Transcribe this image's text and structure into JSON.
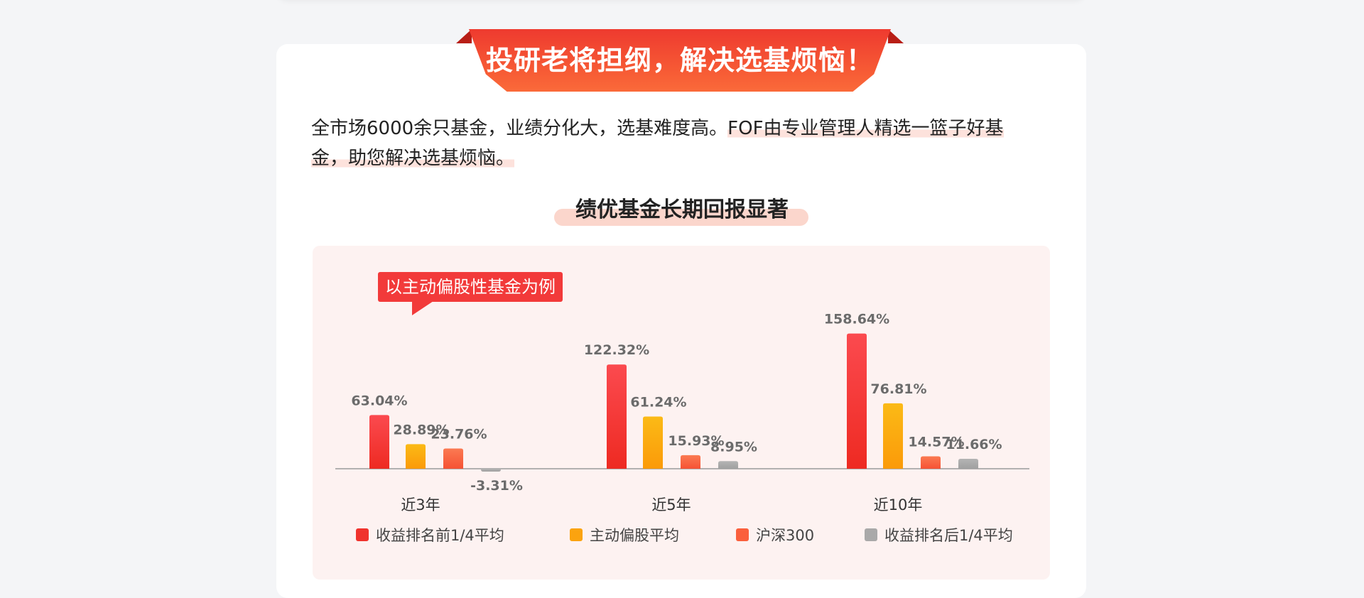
{
  "ribbon": {
    "title": "投研老将担纲，解决选基烦恼！"
  },
  "intro": {
    "part1": "全市场6000余只基金，业绩分化大，选基难度高。",
    "part2_line1": "FOF由专业管理人精选一篮子好基",
    "part2_line2": "金，助您解决选基烦恼。"
  },
  "section": {
    "title": "绩优基金长期回报显著"
  },
  "chart_tag": "以主动偏股性基金为例",
  "colors": {
    "top_quarter": "#f0332d",
    "active_equity": "#fba30f",
    "csi300": "#fa5f3c",
    "bottom_quarter": "#a9a9a9",
    "brand_red": "#ee3a2f"
  },
  "chart_data": {
    "type": "bar",
    "categories": [
      "近3年",
      "近5年",
      "近10年"
    ],
    "series": [
      {
        "name": "收益排名前1/4平均",
        "values": [
          63.04,
          122.32,
          158.64
        ],
        "labels": [
          "63.04%",
          "122.32%",
          "158.64%"
        ]
      },
      {
        "name": "主动偏股平均",
        "values": [
          28.89,
          61.24,
          76.81
        ],
        "labels": [
          "28.89%",
          "61.24%",
          "76.81%"
        ]
      },
      {
        "name": "沪深300",
        "values": [
          23.76,
          15.93,
          14.57
        ],
        "labels": [
          "23.76%",
          "15.93%",
          "14.57%"
        ]
      },
      {
        "name": "收益排名后1/4平均",
        "values": [
          -3.31,
          8.95,
          11.66
        ],
        "labels": [
          "-3.31%",
          "8.95%",
          "11.66%"
        ]
      }
    ],
    "title": "绩优基金长期回报显著",
    "ylabel": "",
    "unit": "%",
    "grid": false,
    "legend": "bottom"
  }
}
